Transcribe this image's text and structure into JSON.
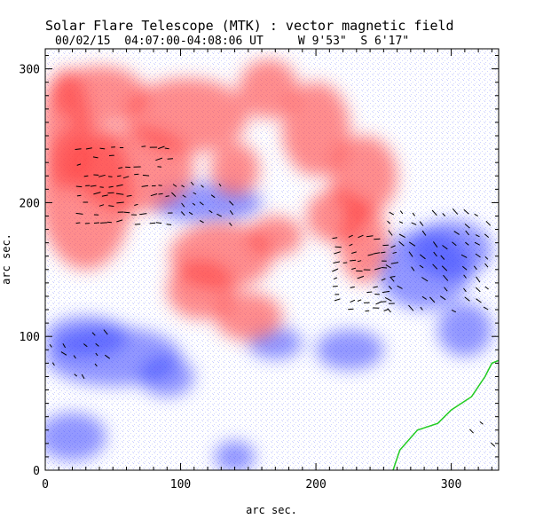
{
  "chart_data": {
    "type": "heatmap",
    "title": "Solar Flare Telescope (MTK) : vector magnetic field",
    "subtitle": "00/02/15  04:07:00-04:08:06 UT     W 9'53\"  S 6'17\"",
    "xlabel": "arc sec.",
    "ylabel": "arc sec.",
    "xlim": [
      0,
      335
    ],
    "ylim": [
      0,
      315
    ],
    "xticks": [
      0,
      100,
      200,
      300
    ],
    "yticks": [
      0,
      100,
      200,
      300
    ],
    "colors": {
      "positive": "#ff4040",
      "negative": "#3846ff",
      "background": "#ffffff",
      "neutral_line": "#22cc22",
      "vectors": "#000000"
    },
    "positive_regions": [
      {
        "x": 30,
        "y": 205,
        "rx": 34,
        "ry": 55
      },
      {
        "x": 65,
        "y": 225,
        "rx": 45,
        "ry": 32
      },
      {
        "x": 15,
        "y": 255,
        "rx": 18,
        "ry": 45
      },
      {
        "x": 40,
        "y": 280,
        "rx": 35,
        "ry": 22
      },
      {
        "x": 105,
        "y": 265,
        "rx": 45,
        "ry": 28
      },
      {
        "x": 140,
        "y": 225,
        "rx": 18,
        "ry": 20
      },
      {
        "x": 165,
        "y": 285,
        "rx": 22,
        "ry": 22
      },
      {
        "x": 200,
        "y": 255,
        "rx": 25,
        "ry": 35
      },
      {
        "x": 235,
        "y": 220,
        "rx": 25,
        "ry": 30
      },
      {
        "x": 235,
        "y": 170,
        "rx": 18,
        "ry": 30
      },
      {
        "x": 215,
        "y": 190,
        "rx": 22,
        "ry": 20
      },
      {
        "x": 130,
        "y": 160,
        "rx": 38,
        "ry": 25
      },
      {
        "x": 115,
        "y": 135,
        "rx": 25,
        "ry": 22
      },
      {
        "x": 150,
        "y": 115,
        "rx": 25,
        "ry": 18
      },
      {
        "x": 170,
        "y": 175,
        "rx": 20,
        "ry": 15
      }
    ],
    "negative_regions": [
      {
        "x": 120,
        "y": 200,
        "rx": 40,
        "ry": 15
      },
      {
        "x": 280,
        "y": 150,
        "rx": 35,
        "ry": 30
      },
      {
        "x": 300,
        "y": 165,
        "rx": 30,
        "ry": 22
      },
      {
        "x": 50,
        "y": 85,
        "rx": 50,
        "ry": 22
      },
      {
        "x": 30,
        "y": 100,
        "rx": 30,
        "ry": 15
      },
      {
        "x": 90,
        "y": 70,
        "rx": 20,
        "ry": 15
      },
      {
        "x": 20,
        "y": 25,
        "rx": 25,
        "ry": 18
      },
      {
        "x": 170,
        "y": 95,
        "rx": 20,
        "ry": 12
      },
      {
        "x": 225,
        "y": 90,
        "rx": 25,
        "ry": 15
      },
      {
        "x": 310,
        "y": 105,
        "rx": 20,
        "ry": 20
      },
      {
        "x": 140,
        "y": 10,
        "rx": 15,
        "ry": 12
      }
    ],
    "neutral_line": [
      [
        257,
        0
      ],
      [
        262,
        15
      ],
      [
        275,
        30
      ],
      [
        290,
        35
      ],
      [
        300,
        45
      ],
      [
        315,
        55
      ],
      [
        325,
        70
      ],
      [
        330,
        80
      ],
      [
        335,
        82
      ]
    ],
    "vector_field": [
      {
        "x0": 25,
        "x1": 95,
        "y0": 185,
        "y1": 245,
        "angle": 5,
        "length": 7,
        "dx": 6,
        "dy": 7
      },
      {
        "x0": 95,
        "x1": 140,
        "y0": 185,
        "y1": 215,
        "angle": -40,
        "length": 6,
        "dx": 7,
        "dy": 7
      },
      {
        "x0": 215,
        "x1": 260,
        "y0": 120,
        "y1": 175,
        "angle": 10,
        "length": 7,
        "dx": 6,
        "dy": 6
      },
      {
        "x0": 255,
        "x1": 330,
        "y0": 120,
        "y1": 195,
        "angle": -40,
        "length": 7,
        "dx": 8,
        "dy": 8
      },
      {
        "x0": 5,
        "x1": 50,
        "y0": 70,
        "y1": 105,
        "angle": -45,
        "length": 6,
        "dx": 8,
        "dy": 8
      },
      {
        "x0": 315,
        "x1": 335,
        "y0": 20,
        "y1": 40,
        "angle": -40,
        "length": 6,
        "dx": 8,
        "dy": 8
      }
    ]
  }
}
